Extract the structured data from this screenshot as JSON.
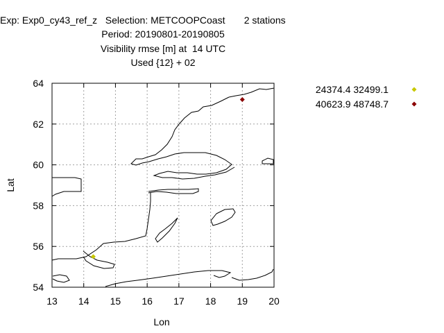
{
  "header": {
    "line1": "Exp: Exp0_cy43_ref_z   Selection: METCOOPCoast       2 stations",
    "line2": "Period: 20190801-20190805",
    "line3": "Visibility rmse [m] at  14 UTC",
    "line4": "Used {12} + 02"
  },
  "chart_data": {
    "type": "scatter",
    "xlabel": "Lon",
    "ylabel": "Lat",
    "xlim": [
      13,
      20
    ],
    "ylim": [
      54,
      64
    ],
    "xticks": [
      "13",
      "14",
      "15",
      "16",
      "17",
      "18",
      "19",
      "20"
    ],
    "yticks": [
      "54",
      "56",
      "58",
      "60",
      "62",
      "64"
    ],
    "grid": true,
    "legend_position": "top-right",
    "series": [
      {
        "name": "24374.4 32499.1",
        "color": "#c8c800",
        "x": [
          14.3
        ],
        "y": [
          55.5
        ]
      },
      {
        "name": "40623.9 48748.7",
        "color": "#8b0000",
        "x": [
          19.0
        ],
        "y": [
          63.2
        ]
      }
    ]
  }
}
